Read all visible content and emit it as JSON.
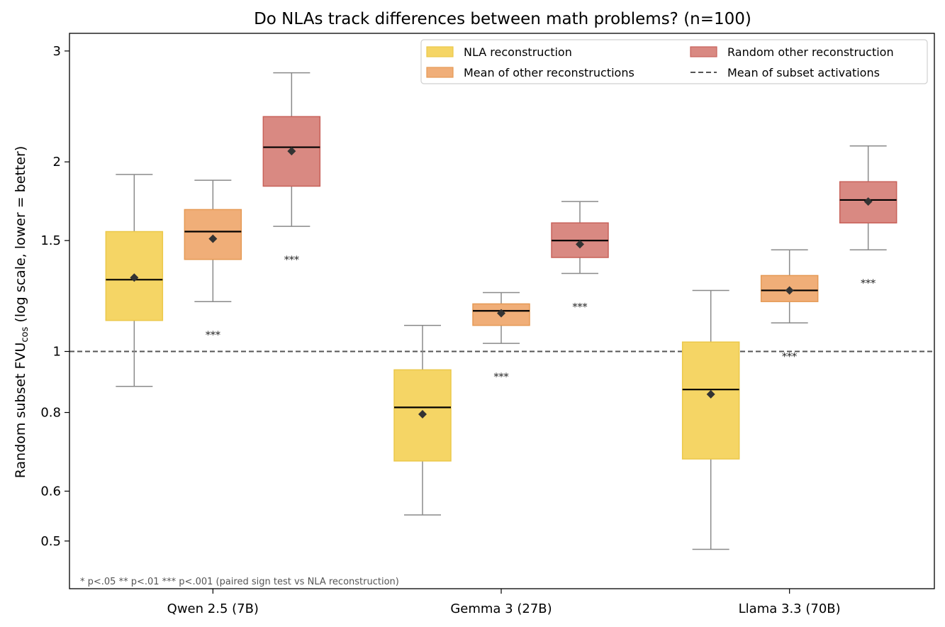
{
  "chart_data": {
    "type": "box",
    "title": "Do NLAs track differences between math problems?  (n=100)",
    "ylabel": {
      "main": "Random subset FVU",
      "subscript": "cos",
      "suffix": "  (log scale, lower = better)"
    },
    "yscale": "log",
    "ylim": [
      0.42,
      3.2
    ],
    "yticks": [
      0.5,
      0.6,
      0.8,
      1,
      1.5,
      2,
      3
    ],
    "ytick_labels": [
      "0.5",
      "0.6",
      "0.8",
      "1",
      "1.5",
      "2",
      "3"
    ],
    "categories": [
      "Qwen 2.5 (7B)",
      "Gemma 3 (27B)",
      "Llama 3.3 (70B)"
    ],
    "series": [
      {
        "name": "NLA reconstruction",
        "color": "#f5d565",
        "edge": "#ebc84a",
        "boxes": [
          {
            "whislo": 0.88,
            "q1": 1.12,
            "med": 1.3,
            "q3": 1.55,
            "whishi": 1.91,
            "mean": 1.31,
            "sig": ""
          },
          {
            "whislo": 0.55,
            "q1": 0.67,
            "med": 0.815,
            "q3": 0.935,
            "whishi": 1.1,
            "mean": 0.795,
            "sig": ""
          },
          {
            "whislo": 0.485,
            "q1": 0.675,
            "med": 0.87,
            "q3": 1.035,
            "whishi": 1.25,
            "mean": 0.855,
            "sig": ""
          }
        ]
      },
      {
        "name": "Mean of other reconstructions",
        "color": "#f0ae78",
        "edge": "#e59a55",
        "boxes": [
          {
            "whislo": 1.2,
            "q1": 1.4,
            "med": 1.55,
            "q3": 1.68,
            "whishi": 1.87,
            "mean": 1.51,
            "sig": "***"
          },
          {
            "whislo": 1.03,
            "q1": 1.1,
            "med": 1.16,
            "q3": 1.19,
            "whishi": 1.24,
            "mean": 1.15,
            "sig": "***"
          },
          {
            "whislo": 1.11,
            "q1": 1.2,
            "med": 1.25,
            "q3": 1.32,
            "whishi": 1.45,
            "mean": 1.25,
            "sig": "***"
          }
        ]
      },
      {
        "name": "Random other reconstruction",
        "color": "#d98982",
        "edge": "#c8625a",
        "boxes": [
          {
            "whislo": 1.58,
            "q1": 1.83,
            "med": 2.11,
            "q3": 2.36,
            "whishi": 2.77,
            "mean": 2.08,
            "sig": "***"
          },
          {
            "whislo": 1.33,
            "q1": 1.41,
            "med": 1.5,
            "q3": 1.6,
            "whishi": 1.73,
            "mean": 1.48,
            "sig": "***"
          },
          {
            "whislo": 1.45,
            "q1": 1.6,
            "med": 1.74,
            "q3": 1.86,
            "whishi": 2.12,
            "mean": 1.73,
            "sig": "***"
          }
        ]
      }
    ],
    "reference_line": {
      "name": "Mean of subset activations",
      "y": 1.0,
      "style": "dashed",
      "color": "#555555"
    },
    "legend": {
      "location": "top-right",
      "columns": 2
    },
    "footnote": "* p<.05   ** p<.01   *** p<.001   (paired sign test vs NLA reconstruction)",
    "grid": false
  }
}
